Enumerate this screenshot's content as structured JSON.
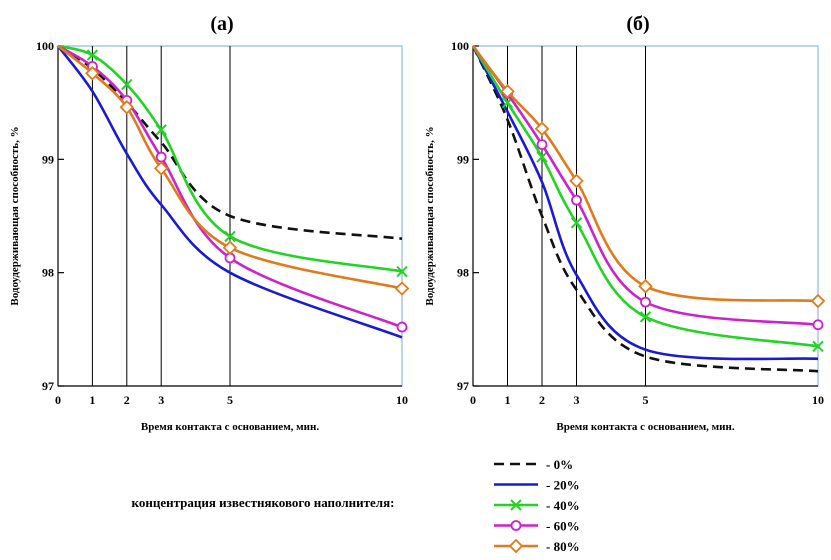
{
  "chart_data": [
    {
      "type": "line",
      "title": "(а)",
      "xlabel": "Время контакта с основанием,  мин.",
      "ylabel": "Водоудерживающая способность, %",
      "x_ticks": [
        0,
        1,
        2,
        3,
        5,
        10
      ],
      "y_ticks": [
        97,
        98,
        99,
        100
      ],
      "xlim": [
        0,
        10
      ],
      "ylim": [
        97,
        100
      ],
      "grid": "vertical lines at x = 1, 2, 3, 5",
      "series": [
        {
          "name": "- 0%",
          "x": [
            0,
            1,
            2,
            3,
            5,
            10
          ],
          "y": [
            100,
            99.8,
            99.5,
            99.15,
            98.5,
            98.3
          ]
        },
        {
          "name": "- 20%",
          "x": [
            0,
            1,
            2,
            3,
            5,
            10
          ],
          "y": [
            100,
            99.6,
            99.05,
            98.6,
            98.0,
            97.43
          ]
        },
        {
          "name": "- 40%",
          "x": [
            0,
            1,
            2,
            3,
            5,
            10
          ],
          "y": [
            100,
            99.92,
            99.66,
            99.26,
            98.32,
            98.01
          ]
        },
        {
          "name": "- 60%",
          "x": [
            0,
            1,
            2,
            3,
            5,
            10
          ],
          "y": [
            100,
            99.82,
            99.52,
            99.02,
            98.13,
            97.52
          ]
        },
        {
          "name": "- 80%",
          "x": [
            0,
            1,
            2,
            3,
            5,
            10
          ],
          "y": [
            100,
            99.76,
            99.46,
            98.92,
            98.22,
            97.86
          ]
        }
      ]
    },
    {
      "type": "line",
      "title": "(б)",
      "xlabel": "Время контакта с основанием,  мин.",
      "ylabel": "Водоудерживающая способность, %",
      "x_ticks": [
        0,
        1,
        2,
        3,
        5,
        10
      ],
      "y_ticks": [
        97,
        98,
        99,
        100
      ],
      "xlim": [
        0,
        10
      ],
      "ylim": [
        97,
        100
      ],
      "grid": "vertical lines at x = 1, 2, 3, 5",
      "series": [
        {
          "name": "- 0%",
          "x": [
            0,
            1,
            2,
            3,
            5,
            10
          ],
          "y": [
            100,
            99.35,
            98.5,
            97.85,
            97.26,
            97.13
          ]
        },
        {
          "name": "- 20%",
          "x": [
            0,
            1,
            2,
            3,
            5,
            10
          ],
          "y": [
            100,
            99.42,
            98.8,
            97.98,
            97.32,
            97.24
          ]
        },
        {
          "name": "- 40%",
          "x": [
            0,
            1,
            2,
            3,
            5,
            10
          ],
          "y": [
            100,
            99.5,
            99.02,
            98.44,
            97.61,
            97.35
          ]
        },
        {
          "name": "- 60%",
          "x": [
            0,
            1,
            2,
            3,
            5,
            10
          ],
          "y": [
            100,
            99.58,
            99.13,
            98.64,
            97.74,
            97.54
          ]
        },
        {
          "name": "- 80%",
          "x": [
            0,
            1,
            2,
            3,
            5,
            10
          ],
          "y": [
            100,
            99.6,
            99.27,
            98.81,
            97.88,
            97.75
          ]
        }
      ]
    }
  ],
  "legend": {
    "title": "концентрация известнякового наполнителя:",
    "placement": "bottom",
    "entries": [
      {
        "label": "- 0%",
        "color": "#111111",
        "style": "dashed",
        "marker": "none"
      },
      {
        "label": "- 20%",
        "color": "#1a1ad6",
        "style": "solid",
        "marker": "none"
      },
      {
        "label": "- 40%",
        "color": "#22d422",
        "style": "solid",
        "marker": "x"
      },
      {
        "label": "- 60%",
        "color": "#cc22cc",
        "style": "solid",
        "marker": "circle"
      },
      {
        "label": "- 80%",
        "color": "#e07a1a",
        "style": "solid",
        "marker": "diamond"
      }
    ]
  }
}
